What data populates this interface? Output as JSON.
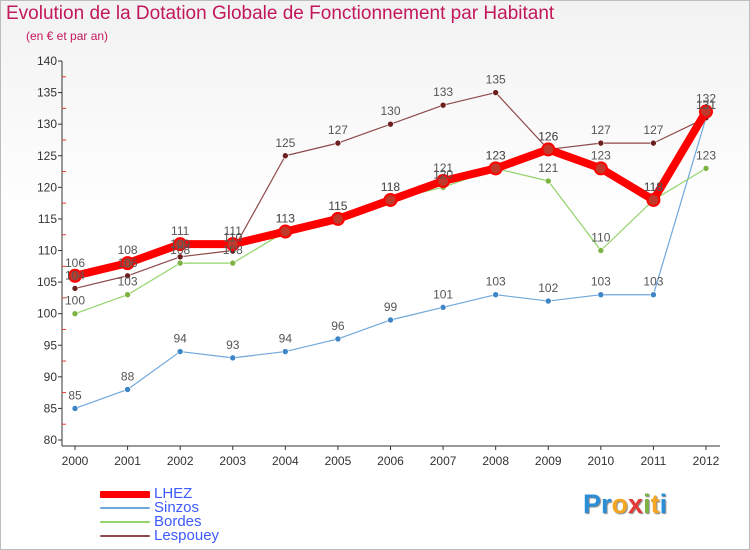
{
  "title": "Evolution de la Dotation Globale de Fonctionnement par Habitant",
  "subtitle": "(en € et par an)",
  "logo_letters": [
    "P",
    "r",
    "o",
    "x",
    "i",
    "t",
    "i"
  ],
  "logo_colors": [
    "#2b8fd8",
    "#2b8fd8",
    "#f5a623",
    "#e53935",
    "#7cb342",
    "#f5a623",
    "#2b8fd8"
  ],
  "chart_data": {
    "type": "line",
    "x": [
      "2000",
      "2001",
      "2002",
      "2003",
      "2004",
      "2005",
      "2006",
      "2007",
      "2008",
      "2009",
      "2010",
      "2011",
      "2012"
    ],
    "ylim": [
      80,
      140
    ],
    "yticks": [
      80,
      85,
      90,
      95,
      100,
      105,
      110,
      115,
      120,
      125,
      130,
      135,
      140
    ],
    "grid": false,
    "legend_position": "bottom-left",
    "series": [
      {
        "name": "LHEZ",
        "color": "#ff0000",
        "marker": "#c0392b",
        "values": [
          106,
          108,
          111,
          111,
          113,
          115,
          118,
          121,
          123,
          126,
          123,
          118,
          132
        ],
        "labels": [
          "106",
          "108",
          "111",
          "111",
          "113",
          "115",
          "118",
          "121",
          "123",
          "126",
          "123",
          "118",
          "132"
        ]
      },
      {
        "name": "Sinzos",
        "color": "#6fa8dc",
        "marker": "#3d85c6",
        "values": [
          85,
          88,
          94,
          93,
          94,
          96,
          99,
          101,
          103,
          102,
          103,
          103,
          131
        ],
        "labels": [
          "85",
          "88",
          "94",
          "93",
          "94",
          "96",
          "99",
          "101",
          "103",
          "102",
          "103",
          "103",
          "131"
        ]
      },
      {
        "name": "Bordes",
        "color": "#93d36a",
        "marker": "#7cb342",
        "values": [
          100,
          103,
          108,
          108,
          113,
          115,
          118,
          120,
          123,
          121,
          110,
          118,
          123
        ],
        "labels": [
          "100",
          "103",
          "108",
          "108",
          "113",
          "115",
          "118",
          "120",
          "123",
          "121",
          "110",
          "118",
          "123"
        ]
      },
      {
        "name": "Lespouey",
        "color": "#8e4a4a",
        "marker": "#6d1f1f",
        "values": [
          104,
          106,
          109,
          110,
          125,
          127,
          130,
          133,
          135,
          126,
          127,
          127,
          131
        ],
        "labels": [
          "104",
          "106",
          "109",
          "110",
          "125",
          "127",
          "130",
          "133",
          "135",
          "126",
          "127",
          "127",
          "131"
        ]
      }
    ]
  }
}
